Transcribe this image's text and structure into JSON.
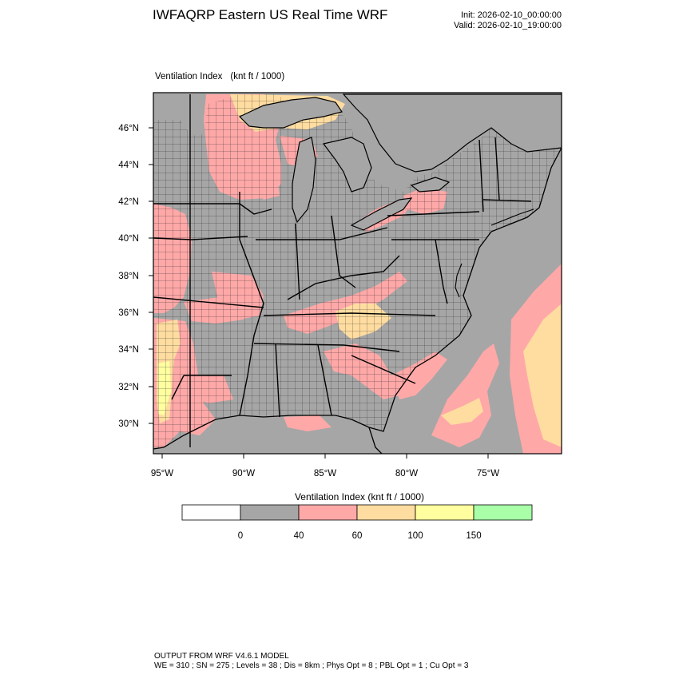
{
  "title": "IWFAQRP Eastern US Real Time WRF",
  "init_label": "Init: 2026-02-10_00:00:00",
  "valid_label": "Valid: 2026-02-10_19:00:00",
  "map": {
    "field_name": "Ventilation Index",
    "field_units": "(knt ft / 1000)",
    "lat_labels": [
      "46°N",
      "44°N",
      "42°N",
      "40°N",
      "38°N",
      "36°N",
      "34°N",
      "32°N",
      "30°N"
    ],
    "lon_labels": [
      "95°W",
      "90°W",
      "85°W",
      "80°W",
      "75°W"
    ],
    "colors": {
      "land_below_40": "#a6a6a6",
      "class_40_60": "#ffa8a8",
      "class_60_100": "#ffdca0",
      "class_100_150": "#ffffa0",
      "boundaries": "#000000"
    }
  },
  "colorbar": {
    "title": "Ventilation Index  (knt ft / 1000)",
    "boxes": [
      {
        "color": "#ffffff"
      },
      {
        "color": "#a6a6a6"
      },
      {
        "color": "#ffa8a8"
      },
      {
        "color": "#ffdca0"
      },
      {
        "color": "#ffffa0"
      },
      {
        "color": "#a8ffa8"
      }
    ],
    "tick_labels": [
      "0",
      "40",
      "60",
      "100",
      "150"
    ]
  },
  "footer": {
    "line1": "OUTPUT FROM WRF V4.6.1 MODEL",
    "line2": "WE = 310 ; SN = 275 ; Levels = 38 ; Dis = 8km ; Phys Opt = 8 ; PBL Opt = 1 ; Cu Opt = 3"
  }
}
